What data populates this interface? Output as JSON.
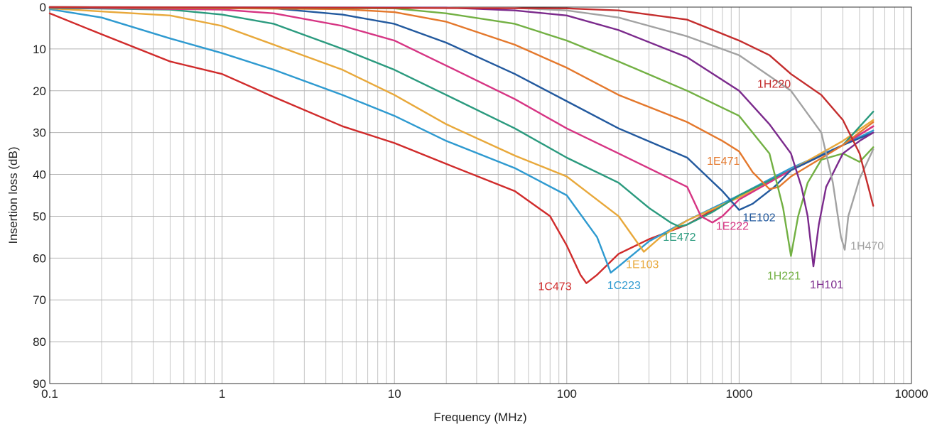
{
  "chart_data": {
    "type": "line",
    "title": "",
    "xlabel": "Frequency (MHz)",
    "ylabel": "Insertion loss (dB)",
    "x_scale": "log",
    "xlim": [
      0.1,
      10000
    ],
    "ylim": [
      0,
      90
    ],
    "y_inverted": true,
    "grid": true,
    "x_ticks": [
      "0.1",
      "1",
      "10",
      "100",
      "1000",
      "10000"
    ],
    "y_ticks": [
      "0",
      "10",
      "20",
      "30",
      "40",
      "50",
      "60",
      "70",
      "80",
      "90"
    ],
    "series": [
      {
        "name": "1C473",
        "color": "#d02b2b",
        "points": [
          [
            0.1,
            1.5
          ],
          [
            0.2,
            6.5
          ],
          [
            0.5,
            13
          ],
          [
            1,
            16
          ],
          [
            2,
            21.5
          ],
          [
            5,
            28.5
          ],
          [
            10,
            32.5
          ],
          [
            20,
            37.5
          ],
          [
            50,
            44
          ],
          [
            80,
            50
          ],
          [
            100,
            57
          ],
          [
            120,
            64
          ],
          [
            130,
            66
          ],
          [
            150,
            64
          ],
          [
            200,
            59
          ],
          [
            300,
            55.5
          ],
          [
            500,
            52
          ],
          [
            1000,
            45
          ],
          [
            2000,
            39
          ],
          [
            4000,
            33
          ],
          [
            6000,
            28.5
          ]
        ]
      },
      {
        "name": "1C223",
        "color": "#2e9ad0",
        "points": [
          [
            0.1,
            0.5
          ],
          [
            0.2,
            2.5
          ],
          [
            0.5,
            7.5
          ],
          [
            1,
            11
          ],
          [
            2,
            15
          ],
          [
            5,
            21
          ],
          [
            10,
            26
          ],
          [
            20,
            32
          ],
          [
            50,
            38.5
          ],
          [
            100,
            45
          ],
          [
            150,
            55
          ],
          [
            180,
            63.5
          ],
          [
            200,
            62
          ],
          [
            300,
            56
          ],
          [
            500,
            51
          ],
          [
            1000,
            45
          ],
          [
            2000,
            38.5
          ],
          [
            4000,
            33
          ],
          [
            6000,
            29.5
          ]
        ]
      },
      {
        "name": "1E103",
        "color": "#e8a83a",
        "points": [
          [
            0.1,
            0.3
          ],
          [
            0.5,
            2
          ],
          [
            1,
            4.5
          ],
          [
            2,
            9
          ],
          [
            5,
            15
          ],
          [
            10,
            21
          ],
          [
            20,
            28
          ],
          [
            50,
            35.5
          ],
          [
            100,
            40.5
          ],
          [
            200,
            50
          ],
          [
            280,
            58.5
          ],
          [
            350,
            55
          ],
          [
            500,
            51
          ],
          [
            1000,
            45.5
          ],
          [
            2000,
            39
          ],
          [
            4000,
            32
          ],
          [
            6000,
            27
          ]
        ]
      },
      {
        "name": "1E472",
        "color": "#2a9a7e",
        "points": [
          [
            0.1,
            0.2
          ],
          [
            0.5,
            0.6
          ],
          [
            1,
            1.8
          ],
          [
            2,
            4
          ],
          [
            5,
            10
          ],
          [
            10,
            15
          ],
          [
            20,
            21
          ],
          [
            50,
            29
          ],
          [
            100,
            36
          ],
          [
            200,
            42
          ],
          [
            300,
            48
          ],
          [
            400,
            51.5
          ],
          [
            450,
            52.5
          ],
          [
            500,
            52
          ],
          [
            700,
            49
          ],
          [
            1000,
            45
          ],
          [
            2000,
            39
          ],
          [
            4000,
            33
          ],
          [
            6000,
            25
          ]
        ]
      },
      {
        "name": "1E222",
        "color": "#d63483",
        "points": [
          [
            0.1,
            0.1
          ],
          [
            1,
            0.6
          ],
          [
            2,
            1.5
          ],
          [
            5,
            4.5
          ],
          [
            10,
            8
          ],
          [
            20,
            14
          ],
          [
            50,
            22
          ],
          [
            100,
            29
          ],
          [
            200,
            35
          ],
          [
            500,
            43
          ],
          [
            600,
            50
          ],
          [
            700,
            51.5
          ],
          [
            800,
            50
          ],
          [
            1000,
            46
          ],
          [
            2000,
            39
          ],
          [
            4000,
            33
          ],
          [
            6000,
            28.5
          ]
        ]
      },
      {
        "name": "1E102",
        "color": "#22599e",
        "points": [
          [
            0.1,
            0.1
          ],
          [
            2,
            0.3
          ],
          [
            5,
            1.8
          ],
          [
            10,
            4
          ],
          [
            20,
            8.5
          ],
          [
            50,
            16
          ],
          [
            100,
            22.5
          ],
          [
            200,
            29
          ],
          [
            500,
            36
          ],
          [
            800,
            44
          ],
          [
            1000,
            48.5
          ],
          [
            1200,
            47
          ],
          [
            1600,
            43
          ],
          [
            2000,
            39
          ],
          [
            4000,
            33
          ],
          [
            6000,
            30
          ]
        ]
      },
      {
        "name": "1E471",
        "color": "#e4782c",
        "points": [
          [
            0.1,
            0
          ],
          [
            5,
            0.5
          ],
          [
            10,
            1.2
          ],
          [
            20,
            3.5
          ],
          [
            50,
            9
          ],
          [
            100,
            14.5
          ],
          [
            200,
            21
          ],
          [
            500,
            27.5
          ],
          [
            800,
            32
          ],
          [
            1000,
            34.5
          ],
          [
            1200,
            39.5
          ],
          [
            1500,
            43.5
          ],
          [
            1700,
            43
          ],
          [
            2000,
            40.5
          ],
          [
            4000,
            33
          ],
          [
            6000,
            27.5
          ]
        ]
      },
      {
        "name": "1H221",
        "color": "#72b043",
        "points": [
          [
            0.1,
            0
          ],
          [
            10,
            0.3
          ],
          [
            20,
            1.5
          ],
          [
            50,
            4
          ],
          [
            100,
            8
          ],
          [
            200,
            13
          ],
          [
            500,
            20
          ],
          [
            1000,
            26
          ],
          [
            1500,
            35
          ],
          [
            1800,
            48
          ],
          [
            2000,
            59.5
          ],
          [
            2200,
            50
          ],
          [
            2500,
            42
          ],
          [
            3000,
            36.5
          ],
          [
            4000,
            35
          ],
          [
            5000,
            37
          ],
          [
            6000,
            33.5
          ]
        ]
      },
      {
        "name": "1H101",
        "color": "#7b2a8c",
        "points": [
          [
            0.1,
            0
          ],
          [
            20,
            0.1
          ],
          [
            50,
            0.8
          ],
          [
            100,
            2
          ],
          [
            200,
            5.5
          ],
          [
            500,
            12
          ],
          [
            1000,
            20
          ],
          [
            1500,
            28
          ],
          [
            2000,
            35
          ],
          [
            2300,
            43
          ],
          [
            2500,
            50
          ],
          [
            2700,
            62
          ],
          [
            2900,
            52
          ],
          [
            3200,
            43
          ],
          [
            4000,
            35
          ],
          [
            5000,
            32
          ],
          [
            6000,
            30
          ]
        ]
      },
      {
        "name": "1H470",
        "color": "#a2a2a2",
        "points": [
          [
            0.1,
            0
          ],
          [
            50,
            0.2
          ],
          [
            100,
            0.8
          ],
          [
            200,
            2.5
          ],
          [
            500,
            7
          ],
          [
            1000,
            11.5
          ],
          [
            2000,
            20
          ],
          [
            3000,
            30
          ],
          [
            3500,
            42
          ],
          [
            3900,
            55
          ],
          [
            4100,
            58
          ],
          [
            4300,
            50
          ],
          [
            5000,
            41
          ],
          [
            6000,
            34
          ]
        ]
      },
      {
        "name": "1H220",
        "color": "#c42d2d",
        "points": [
          [
            0.1,
            0
          ],
          [
            100,
            0.3
          ],
          [
            200,
            0.8
          ],
          [
            500,
            3
          ],
          [
            1000,
            8
          ],
          [
            1500,
            11.5
          ],
          [
            2000,
            16
          ],
          [
            3000,
            21
          ],
          [
            4000,
            27
          ],
          [
            5000,
            35
          ],
          [
            6000,
            47.5
          ]
        ]
      }
    ]
  }
}
